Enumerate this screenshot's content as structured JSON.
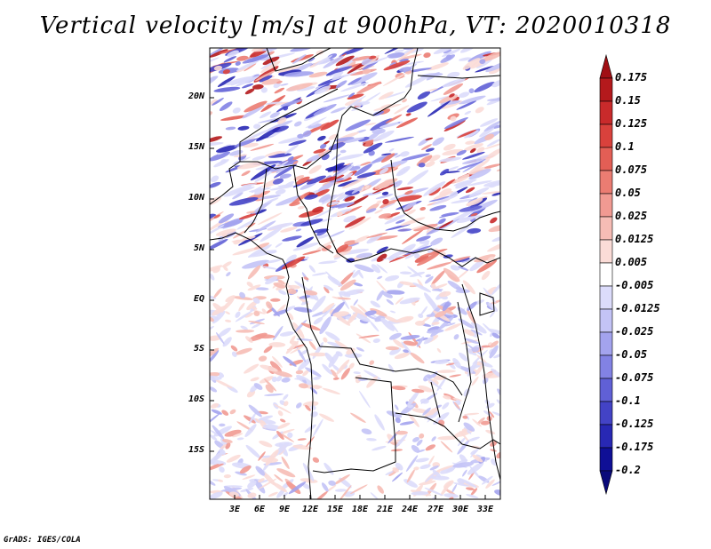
{
  "title": "Vertical velocity [m/s] at 900hPa, VT: 2020010318",
  "footer": "GrADS: IGES/COLA",
  "map": {
    "lat_labels": [
      "20N",
      "15N",
      "10N",
      "5N",
      "EQ",
      "5S",
      "10S",
      "15S"
    ],
    "lon_labels": [
      "3E",
      "6E",
      "9E",
      "12E",
      "15E",
      "18E",
      "21E",
      "24E",
      "27E",
      "30E",
      "33E"
    ]
  },
  "colorbar": {
    "labels": [
      "0.175",
      "0.15",
      "0.125",
      "0.1",
      "0.075",
      "0.05",
      "0.025",
      "0.0125",
      "0.005",
      "-0.005",
      "-0.0125",
      "-0.025",
      "-0.05",
      "-0.075",
      "-0.1",
      "-0.125",
      "-0.175",
      "-0.2"
    ],
    "colors": [
      "#a00f14",
      "#b4191c",
      "#c92a2b",
      "#d9413c",
      "#e35e55",
      "#eb7c72",
      "#f19a92",
      "#f6bcb5",
      "#fbdcd7",
      "#ffffff",
      "#dcdcfb",
      "#c3c3f6",
      "#a3a3ee",
      "#8282e4",
      "#6060d6",
      "#4343c6",
      "#2828b4",
      "#0f0f96",
      "#0a0a7a"
    ]
  }
}
